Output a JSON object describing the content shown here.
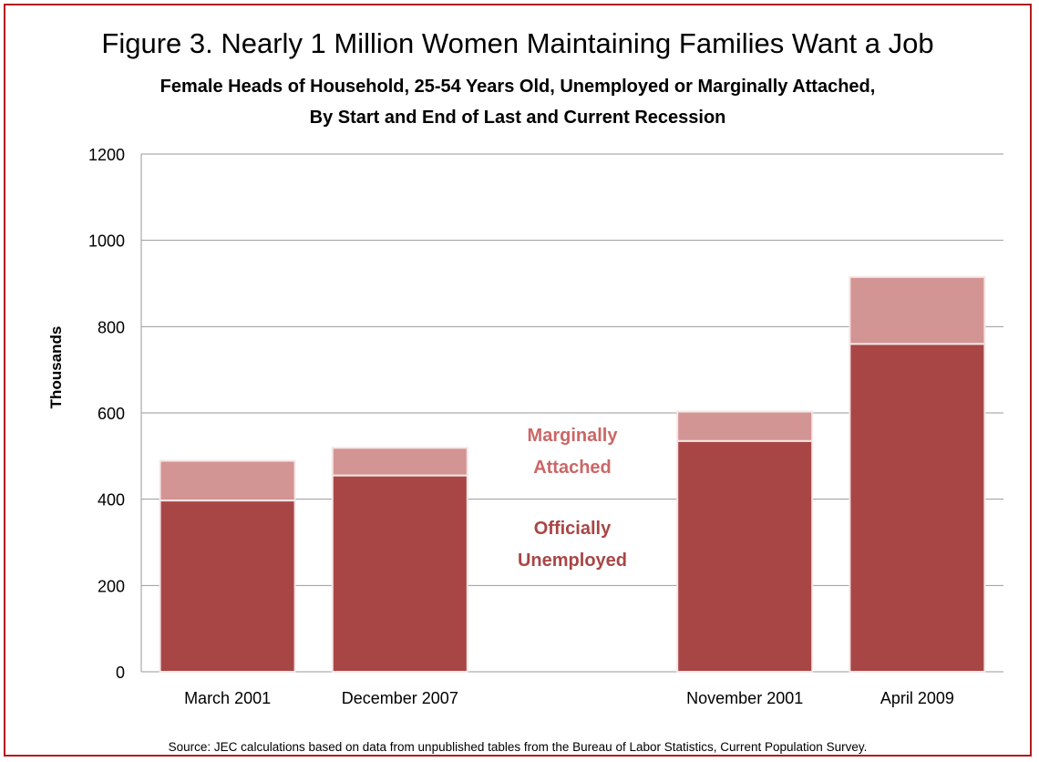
{
  "colors": {
    "frame": "#b01c1c",
    "unemployed": "#a84646",
    "marginal": "#d39494",
    "unemployed_label": "#a84646",
    "marginal_label": "#cc6666",
    "grid": "#9a9a9a"
  },
  "chart_data": {
    "type": "bar",
    "stacked": true,
    "title": "Figure 3. Nearly 1 Million Women Maintaining Families Want a Job",
    "subtitle_lines": [
      "Female Heads of Household, 25-54 Years Old, Unemployed or Marginally Attached,",
      "By Start and End of Last and Current Recession"
    ],
    "ylabel": "Thousands",
    "xlabel": "",
    "ylim": [
      0,
      1200
    ],
    "yticks": [
      "0",
      "200",
      "400",
      "600",
      "800",
      "1000",
      "1200"
    ],
    "grid": true,
    "categories": [
      "March 2001",
      "December 2007",
      "",
      "November 2001",
      "April 2009"
    ],
    "series": [
      {
        "name": "Officially Unemployed",
        "values": [
          397,
          455,
          null,
          535,
          760
        ]
      },
      {
        "name": "Marginally Attached",
        "values": [
          92,
          64,
          null,
          68,
          155
        ]
      }
    ],
    "annotations": {
      "marginal": [
        "Marginally",
        "Attached"
      ],
      "unemployed": [
        "Officially",
        "Unemployed"
      ]
    },
    "source": "Source: JEC calculations based on data from unpublished tables from the Bureau of Labor Statistics, Current Population Survey."
  }
}
